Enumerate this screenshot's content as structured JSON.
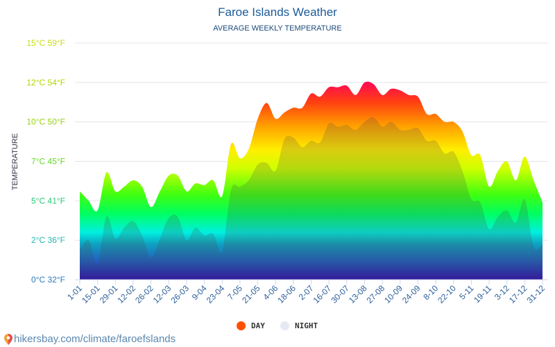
{
  "title": "Faroe Islands Weather",
  "subtitle": "AVERAGE WEEKLY TEMPERATURE",
  "footer": {
    "link_text": "hikersbay.com/climate/faroefslands",
    "icon": "map-pin-icon"
  },
  "legend": [
    {
      "label": "DAY",
      "color": "#ff5000"
    },
    {
      "label": "NIGHT",
      "color": "#e4eaf2"
    }
  ],
  "chart_data": {
    "type": "area",
    "title": "Faroe Islands Weather",
    "subtitle": "AVERAGE WEEKLY TEMPERATURE",
    "ylabel": "TEMPERATURE",
    "ylim": [
      0,
      15
    ],
    "grid": true,
    "legend_position": "bottom",
    "y_ticks": [
      {
        "value": 0,
        "label": "0°C 32°F",
        "color": "#2a7cc0"
      },
      {
        "value": 2.5,
        "label": "2°C 36°F",
        "color": "#20b8b0"
      },
      {
        "value": 5,
        "label": "5°C 41°F",
        "color": "#28c878"
      },
      {
        "value": 7.5,
        "label": "7°C 45°F",
        "color": "#60d820"
      },
      {
        "value": 10,
        "label": "10°C 50°F",
        "color": "#98d010"
      },
      {
        "value": 12.5,
        "label": "12°C 54°F",
        "color": "#b4d400"
      },
      {
        "value": 15,
        "label": "15°C 59°F",
        "color": "#c8dc10"
      }
    ],
    "x_tick_labels": [
      "1-01",
      "15-01",
      "29-01",
      "12-02",
      "26-02",
      "12-03",
      "26-03",
      "9-04",
      "23-04",
      "7-05",
      "21-05",
      "4-06",
      "18-06",
      "2-07",
      "16-07",
      "30-07",
      "13-08",
      "27-08",
      "10-09",
      "24-09",
      "8-10",
      "22-10",
      "5-11",
      "19-11",
      "3-12",
      "17-12",
      "31-12"
    ],
    "series": [
      {
        "name": "DAY",
        "values": [
          5.6,
          5.0,
          4.4,
          6.8,
          5.6,
          5.9,
          6.3,
          5.9,
          4.6,
          5.6,
          6.6,
          6.6,
          5.6,
          6.1,
          6.0,
          6.3,
          5.3,
          8.6,
          7.7,
          8.3,
          10.2,
          11.2,
          10.2,
          10.6,
          10.9,
          10.9,
          11.8,
          11.6,
          12.2,
          12.2,
          12.3,
          11.7,
          12.5,
          12.4,
          11.7,
          12.1,
          12.0,
          11.7,
          11.6,
          10.5,
          10.5,
          10.0,
          10.0,
          9.4,
          7.9,
          7.9,
          5.9,
          6.9,
          7.5,
          6.3,
          7.8,
          6.3,
          4.9
        ]
      },
      {
        "name": "NIGHT",
        "values": [
          1.9,
          2.5,
          1.0,
          4.0,
          2.6,
          3.3,
          3.7,
          2.8,
          1.4,
          2.6,
          3.9,
          4.0,
          2.5,
          3.3,
          2.8,
          2.9,
          1.8,
          5.7,
          5.9,
          6.3,
          7.3,
          7.4,
          6.9,
          8.9,
          9.0,
          8.4,
          8.8,
          8.7,
          9.9,
          9.7,
          9.8,
          9.5,
          10.0,
          10.3,
          9.7,
          10.0,
          9.5,
          9.5,
          9.6,
          8.8,
          8.8,
          8.0,
          8.1,
          6.9,
          5.1,
          4.9,
          3.2,
          4.0,
          4.4,
          3.6,
          5.1,
          2.1,
          2.2
        ]
      }
    ]
  }
}
